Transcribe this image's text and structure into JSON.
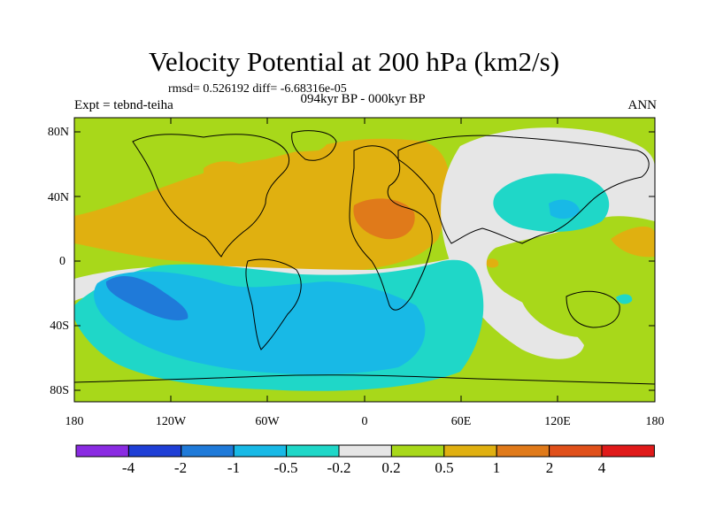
{
  "title": "Velocity Potential at 200 hPa (km2/s)",
  "stats": "rmsd= 0.526192 diff= -6.68316e-05",
  "left_label": "Expt = tebnd-teiha",
  "center_label": "094kyr BP - 000kyr BP",
  "right_label": "ANN",
  "y_ticks": [
    "80N",
    "40N",
    "0",
    "40S",
    "80S"
  ],
  "x_ticks": [
    "180",
    "120W",
    "60W",
    "0",
    "60E",
    "120E",
    "180"
  ],
  "colorbar": {
    "labels": [
      "-4",
      "-2",
      "-1",
      "-0.5",
      "-0.2",
      "0.2",
      "0.5",
      "1",
      "2",
      "4"
    ],
    "colors": [
      "#8a2be2",
      "#1f3fd6",
      "#1f7ad9",
      "#18b9e6",
      "#1fd7c8",
      "#e6e6e6",
      "#a8d81a",
      "#e0b010",
      "#e07a1a",
      "#e0501a",
      "#e01a1a"
    ]
  },
  "field_colors": {
    "neg_strong": "#1f7ad9",
    "neg_mid": "#18b9e6",
    "neg_weak": "#1fd7c8",
    "neutral": "#e6e6e6",
    "pos_weak": "#a8d81a",
    "pos_mid": "#e0b010",
    "pos_strong": "#e07a1a",
    "coast": "#000000"
  }
}
